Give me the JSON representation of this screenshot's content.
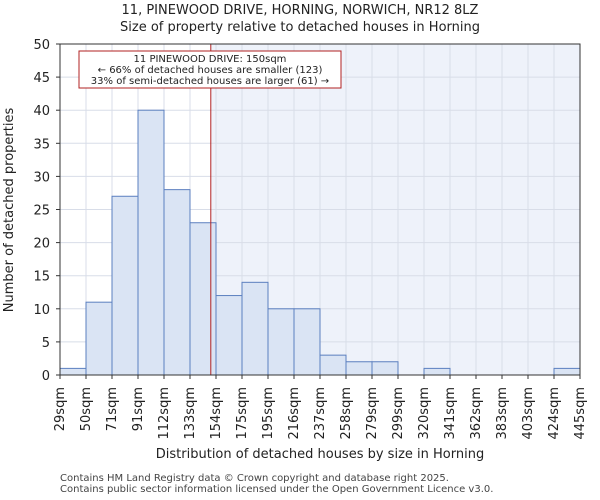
{
  "title_line1": "11, PINEWOOD DRIVE, HORNING, NORWICH, NR12 8LZ",
  "title_line2": "Size of property relative to detached houses in Horning",
  "footer_line1": "Contains HM Land Registry data © Crown copyright and database right 2025.",
  "footer_line2": "Contains public sector information licensed under the Open Government Licence v3.0.",
  "colors": {
    "bar_fill": "#dae4f4",
    "bar_stroke": "#5b7fbf",
    "shade": "#eef2fa",
    "marker": "#b22222",
    "grid": "#d8dde8"
  },
  "chart_data": {
    "type": "bar",
    "title": "Size of property relative to detached houses in Horning",
    "xlabel": "Distribution of detached houses by size in Horning",
    "ylabel": "Number of detached properties",
    "ylim": [
      0,
      50
    ],
    "yticks": [
      0,
      5,
      10,
      15,
      20,
      25,
      30,
      35,
      40,
      45,
      50
    ],
    "bin_edges": [
      "29sqm",
      "50sqm",
      "71sqm",
      "91sqm",
      "112sqm",
      "133sqm",
      "154sqm",
      "175sqm",
      "195sqm",
      "216sqm",
      "237sqm",
      "258sqm",
      "279sqm",
      "299sqm",
      "320sqm",
      "341sqm",
      "362sqm",
      "383sqm",
      "403sqm",
      "424sqm",
      "445sqm"
    ],
    "values": [
      1,
      11,
      27,
      40,
      28,
      23,
      12,
      14,
      10,
      10,
      3,
      2,
      2,
      0,
      1,
      0,
      0,
      0,
      0,
      1
    ],
    "marker_value_sqm": 150,
    "marker_bin_position": 5.8,
    "annotation": {
      "line1": "11 PINEWOOD DRIVE: 150sqm",
      "line2": "← 66% of detached houses are smaller (123)",
      "line3": "33% of semi-detached houses are larger (61) →"
    },
    "grid": true
  }
}
